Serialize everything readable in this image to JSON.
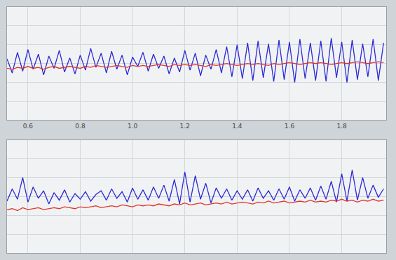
{
  "chart_data": [
    {
      "type": "line",
      "x": [
        0.52,
        0.54,
        0.56,
        0.58,
        0.6,
        0.62,
        0.64,
        0.66,
        0.68,
        0.7,
        0.72,
        0.74,
        0.76,
        0.78,
        0.8,
        0.82,
        0.84,
        0.86,
        0.88,
        0.9,
        0.92,
        0.94,
        0.96,
        0.98,
        1,
        1.02,
        1.04,
        1.06,
        1.08,
        1.1,
        1.12,
        1.14,
        1.16,
        1.18,
        1.2,
        1.22,
        1.24,
        1.26,
        1.28,
        1.3,
        1.32,
        1.34,
        1.36,
        1.38,
        1.4,
        1.42,
        1.44,
        1.46,
        1.48,
        1.5,
        1.52,
        1.54,
        1.56,
        1.58,
        1.6,
        1.62,
        1.64,
        1.66,
        1.68,
        1.7,
        1.72,
        1.74,
        1.76,
        1.78,
        1.8,
        1.82,
        1.84,
        1.86,
        1.88,
        1.9,
        1.92,
        1.94,
        1.96
      ],
      "series": [
        {
          "color": "#2b2bd6",
          "values": [
            5,
            -10,
            12,
            -8,
            15,
            -6,
            10,
            -12,
            8,
            -5,
            14,
            -9,
            6,
            -11,
            9,
            -7,
            16,
            -4,
            11,
            -10,
            13,
            -6,
            9,
            -12,
            7,
            -3,
            12,
            -8,
            10,
            -5,
            8,
            -11,
            6,
            -9,
            14,
            -7,
            11,
            -13,
            9,
            -6,
            15,
            -10,
            18,
            -14,
            20,
            -16,
            22,
            -18,
            24,
            -15,
            21,
            -19,
            25,
            -17,
            23,
            -20,
            26,
            -16,
            22,
            -18,
            24,
            -19,
            27,
            -15,
            23,
            -20,
            25,
            -17,
            21,
            -14,
            26,
            -18,
            22
          ]
        },
        {
          "color": "#e0352b",
          "values": [
            -5,
            -6,
            -4,
            -5,
            -3,
            -5,
            -4,
            -6,
            -4,
            -3,
            -5,
            -4,
            -3,
            -4,
            -5,
            -3,
            -4,
            -2,
            -3,
            -4,
            -3,
            -2,
            -3,
            -4,
            -2,
            -3,
            -2,
            -3,
            -2,
            -1,
            -2,
            -3,
            -1,
            -2,
            -1,
            -2,
            -1,
            -2,
            -3,
            -1,
            -2,
            -1,
            0,
            -1,
            -2,
            -1,
            0,
            -1,
            0,
            -1,
            -2,
            0,
            -1,
            0,
            1,
            0,
            -1,
            0,
            1,
            0,
            1,
            0,
            -1,
            0,
            1,
            0,
            1,
            2,
            1,
            0,
            1,
            2,
            1
          ]
        }
      ],
      "xlim": [
        0.52,
        1.97
      ],
      "xticks": [
        0.6,
        0.8,
        {
          "value": 1,
          "label": "1.0"
        },
        1.2,
        1.4,
        1.6,
        1.8
      ],
      "ylim": [
        -60,
        60
      ],
      "yticks": [
        -60,
        -40,
        -20,
        0,
        20,
        40,
        60
      ],
      "grid": true,
      "tick_labels": "x"
    },
    {
      "type": "line",
      "x": [
        0.52,
        0.54,
        0.56,
        0.58,
        0.6,
        0.62,
        0.64,
        0.66,
        0.68,
        0.7,
        0.72,
        0.74,
        0.76,
        0.78,
        0.8,
        0.82,
        0.84,
        0.86,
        0.88,
        0.9,
        0.92,
        0.94,
        0.96,
        0.98,
        1,
        1.02,
        1.04,
        1.06,
        1.08,
        1.1,
        1.12,
        1.14,
        1.16,
        1.18,
        1.2,
        1.22,
        1.24,
        1.26,
        1.28,
        1.3,
        1.32,
        1.34,
        1.36,
        1.38,
        1.4,
        1.42,
        1.44,
        1.46,
        1.48,
        1.5,
        1.52,
        1.54,
        1.56,
        1.58,
        1.6,
        1.62,
        1.64,
        1.66,
        1.68,
        1.7,
        1.72,
        1.74,
        1.76,
        1.78,
        1.8,
        1.82,
        1.84,
        1.86,
        1.88,
        1.9,
        1.92,
        1.94,
        1.96
      ],
      "series": [
        {
          "color": "#2b2bd6",
          "values": [
            -5,
            8,
            -3,
            20,
            -6,
            10,
            -2,
            6,
            -8,
            4,
            -4,
            7,
            -6,
            3,
            -3,
            5,
            -5,
            2,
            6,
            -4,
            8,
            -2,
            5,
            -6,
            9,
            -3,
            7,
            -4,
            10,
            -2,
            12,
            -5,
            18,
            -8,
            26,
            -6,
            22,
            -3,
            14,
            -7,
            9,
            -2,
            8,
            -4,
            6,
            -3,
            7,
            -5,
            9,
            -2,
            6,
            -4,
            8,
            -3,
            10,
            -5,
            7,
            -2,
            9,
            -4,
            11,
            -3,
            16,
            -6,
            24,
            -5,
            28,
            -4,
            20,
            -2,
            12,
            -1,
            8
          ]
        },
        {
          "color": "#e0352b",
          "values": [
            -14,
            -13,
            -15,
            -12,
            -14,
            -13,
            -12,
            -14,
            -13,
            -12,
            -13,
            -11,
            -12,
            -13,
            -11,
            -12,
            -11,
            -10,
            -12,
            -11,
            -10,
            -11,
            -9,
            -10,
            -11,
            -9,
            -10,
            -9,
            -10,
            -8,
            -9,
            -10,
            -8,
            -9,
            -7,
            -9,
            -8,
            -7,
            -9,
            -8,
            -7,
            -8,
            -6,
            -8,
            -7,
            -6,
            -7,
            -8,
            -6,
            -7,
            -5,
            -7,
            -6,
            -5,
            -7,
            -6,
            -5,
            -6,
            -4,
            -6,
            -5,
            -6,
            -4,
            -5,
            -3,
            -5,
            -4,
            -6,
            -4,
            -5,
            -3,
            -5,
            -4
          ]
        }
      ],
      "xlim": [
        0.52,
        1.97
      ],
      "xticks": [
        0.6,
        0.8,
        1,
        1.2,
        1.4,
        1.6,
        1.8
      ],
      "ylim": [
        -60,
        60
      ],
      "yticks": [
        -60,
        -40,
        -20,
        0,
        20,
        40,
        60
      ],
      "grid": true,
      "tick_labels": false
    }
  ]
}
